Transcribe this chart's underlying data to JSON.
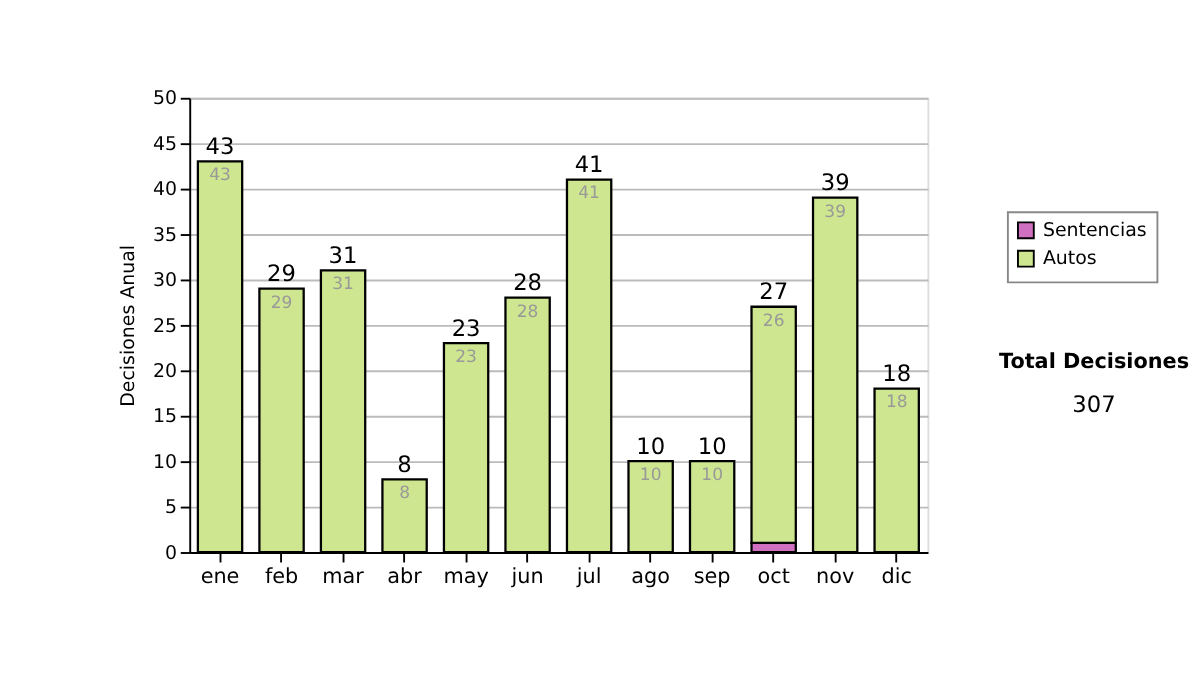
{
  "chart_data": {
    "type": "bar",
    "stacked": true,
    "ylabel": "Decisiones Anual",
    "categories": [
      "ene",
      "feb",
      "mar",
      "abr",
      "may",
      "jun",
      "jul",
      "ago",
      "sep",
      "oct",
      "nov",
      "dic"
    ],
    "series": [
      {
        "name": "Sentencias",
        "color": "#d070c0",
        "values": [
          0,
          0,
          0,
          0,
          0,
          0,
          0,
          0,
          0,
          1,
          0,
          0
        ]
      },
      {
        "name": "Autos",
        "color": "#cde68f",
        "values": [
          43,
          29,
          31,
          8,
          23,
          28,
          41,
          10,
          10,
          26,
          39,
          18
        ],
        "value_labels": [
          "43",
          "29",
          "31",
          "8",
          "23",
          "28",
          "41",
          "10",
          "10",
          "26",
          "39",
          "18"
        ]
      }
    ],
    "totals": [
      "43",
      "29",
      "31",
      "8",
      "23",
      "28",
      "41",
      "10",
      "10",
      "27",
      "39",
      "18"
    ],
    "ylim": [
      0,
      50
    ],
    "yticks": [
      0,
      5,
      10,
      15,
      20,
      25,
      30,
      35,
      40,
      45,
      50
    ],
    "grid": "y",
    "legend": "right",
    "annotations": [
      "Total Decisiones",
      "307"
    ]
  }
}
